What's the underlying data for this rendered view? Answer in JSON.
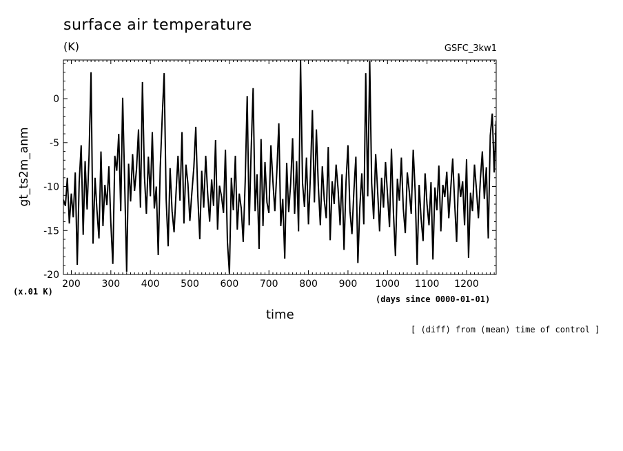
{
  "header": {
    "title": "surface air temperature",
    "unit": "(K)",
    "model": "GSFC_3kw1"
  },
  "footer": {
    "scale_note": "(x.01 K)",
    "xaxis_unit": "(days since 0000-01-01)",
    "xaxis_label": "time",
    "comparison_note": "[ (diff) from (mean) time of control ]"
  },
  "chart_data": {
    "type": "line",
    "title": "surface air temperature",
    "ylabel": "gt_ts2m_anm",
    "xlabel": "time",
    "xlim": [
      180,
      1275
    ],
    "ylim": [
      -20,
      4.4
    ],
    "xticks": [
      200,
      300,
      400,
      500,
      600,
      700,
      800,
      900,
      1000,
      1100,
      1200
    ],
    "yticks": [
      -20,
      -15,
      -10,
      -5,
      0
    ],
    "grid": false,
    "legend": "none",
    "line_color": "#000000",
    "series": [
      {
        "x": [
          180,
          185,
          190,
          195,
          200,
          205,
          210,
          215,
          220,
          225,
          230,
          235,
          240,
          245,
          250,
          255,
          260,
          265,
          270,
          275,
          280,
          285,
          290,
          295,
          300,
          305,
          310,
          315,
          320,
          325,
          330,
          335,
          340,
          345,
          350,
          355,
          360,
          365,
          370,
          375,
          380,
          385,
          390,
          395,
          400,
          405,
          410,
          415,
          420,
          425,
          430,
          435,
          440,
          445,
          450,
          455,
          460,
          465,
          470,
          475,
          480,
          485,
          490,
          495,
          500,
          505,
          510,
          515,
          520,
          525,
          530,
          535,
          540,
          545,
          550,
          555,
          560,
          565,
          570,
          575,
          580,
          585,
          590,
          595,
          600,
          605,
          610,
          615,
          620,
          625,
          630,
          635,
          640,
          645,
          650,
          655,
          660,
          665,
          670,
          675,
          680,
          685,
          690,
          695,
          700,
          705,
          710,
          715,
          720,
          725,
          730,
          735,
          740,
          745,
          750,
          755,
          760,
          765,
          770,
          775,
          780,
          785,
          790,
          795,
          800,
          805,
          810,
          815,
          820,
          825,
          830,
          835,
          840,
          845,
          850,
          855,
          860,
          865,
          870,
          875,
          880,
          885,
          890,
          895,
          900,
          905,
          910,
          915,
          920,
          925,
          930,
          935,
          940,
          945,
          950,
          955,
          960,
          965,
          970,
          975,
          980,
          985,
          990,
          995,
          1000,
          1005,
          1010,
          1015,
          1020,
          1025,
          1030,
          1035,
          1040,
          1045,
          1050,
          1055,
          1060,
          1065,
          1070,
          1075,
          1080,
          1085,
          1090,
          1095,
          1100,
          1105,
          1110,
          1115,
          1120,
          1125,
          1130,
          1135,
          1140,
          1145,
          1150,
          1155,
          1160,
          1165,
          1170,
          1175,
          1180,
          1185,
          1190,
          1195,
          1200,
          1205,
          1210,
          1215,
          1220,
          1225,
          1230,
          1235,
          1240,
          1245,
          1250,
          1255,
          1260,
          1265,
          1270,
          1275
        ],
        "values": [
          -11.5,
          -12.2,
          -9.0,
          -14.2,
          -10.8,
          -13.5,
          -8.4,
          -18.9,
          -9.5,
          -5.3,
          -15.5,
          -7.1,
          -12.6,
          -6.3,
          3.0,
          -16.5,
          -9.0,
          -12.7,
          -15.9,
          -6.0,
          -14.5,
          -9.8,
          -12.1,
          -7.7,
          -14.1,
          -18.8,
          -6.5,
          -8.2,
          -4.0,
          -12.8,
          0.1,
          -9.5,
          -19.7,
          -7.4,
          -11.7,
          -6.3,
          -10.5,
          -8.0,
          -3.5,
          -12.4,
          1.9,
          -8.8,
          -13.1,
          -6.6,
          -11.1,
          -3.8,
          -12.5,
          -10.0,
          -17.8,
          -7.9,
          -2.1,
          2.9,
          -11.4,
          -16.8,
          -7.9,
          -12.8,
          -15.2,
          -10.6,
          -6.5,
          -11.6,
          -3.8,
          -14.2,
          -7.5,
          -9.7,
          -13.9,
          -10.7,
          -7.8,
          -3.2,
          -11.0,
          -16.0,
          -8.2,
          -12.4,
          -6.5,
          -10.7,
          -14.0,
          -9.2,
          -12.2,
          -4.7,
          -14.9,
          -9.9,
          -11.1,
          -13.0,
          -5.8,
          -16.3,
          -19.9,
          -9.0,
          -12.7,
          -6.5,
          -14.9,
          -10.8,
          -12.5,
          -16.3,
          -9.4,
          0.3,
          -14.4,
          -6.0,
          1.2,
          -12.8,
          -8.6,
          -17.1,
          -4.6,
          -14.5,
          -7.2,
          -11.8,
          -13.0,
          -5.3,
          -9.4,
          -12.8,
          -8.3,
          -2.8,
          -14.5,
          -11.4,
          -18.2,
          -7.3,
          -12.9,
          -9.6,
          -4.5,
          -13.1,
          -7.1,
          -15.1,
          4.4,
          -9.6,
          -12.3,
          -6.7,
          -14.3,
          -8.8,
          -1.3,
          -11.8,
          -3.5,
          -9.9,
          -14.4,
          -7.7,
          -11.5,
          -13.6,
          -5.5,
          -16.1,
          -9.4,
          -12.0,
          -7.5,
          -10.3,
          -14.4,
          -8.6,
          -17.2,
          -9.5,
          -5.3,
          -12.8,
          -15.4,
          -10.5,
          -6.6,
          -18.7,
          -12.4,
          -8.5,
          -14.3,
          2.9,
          -11.1,
          4.3,
          -9.6,
          -13.7,
          -6.3,
          -10.4,
          -15.1,
          -9.0,
          -12.4,
          -7.2,
          -10.9,
          -14.6,
          -5.7,
          -13.0,
          -17.9,
          -9.1,
          -11.6,
          -6.7,
          -12.5,
          -15.3,
          -8.4,
          -10.5,
          -13.1,
          -5.8,
          -10.5,
          -18.9,
          -9.8,
          -13.6,
          -16.2,
          -8.5,
          -12.0,
          -14.4,
          -9.5,
          -18.3,
          -10.1,
          -12.7,
          -7.6,
          -15.1,
          -9.8,
          -11.2,
          -8.3,
          -13.6,
          -10.3,
          -6.8,
          -12.0,
          -16.3,
          -8.5,
          -11.2,
          -9.4,
          -14.4,
          -6.9,
          -18.1,
          -10.7,
          -12.8,
          -7.5,
          -10.3,
          -13.6,
          -9.1,
          -6.0,
          -11.4,
          -7.8,
          -15.9,
          -4.2,
          -1.7,
          -8.4,
          -2.5
        ]
      }
    ]
  }
}
